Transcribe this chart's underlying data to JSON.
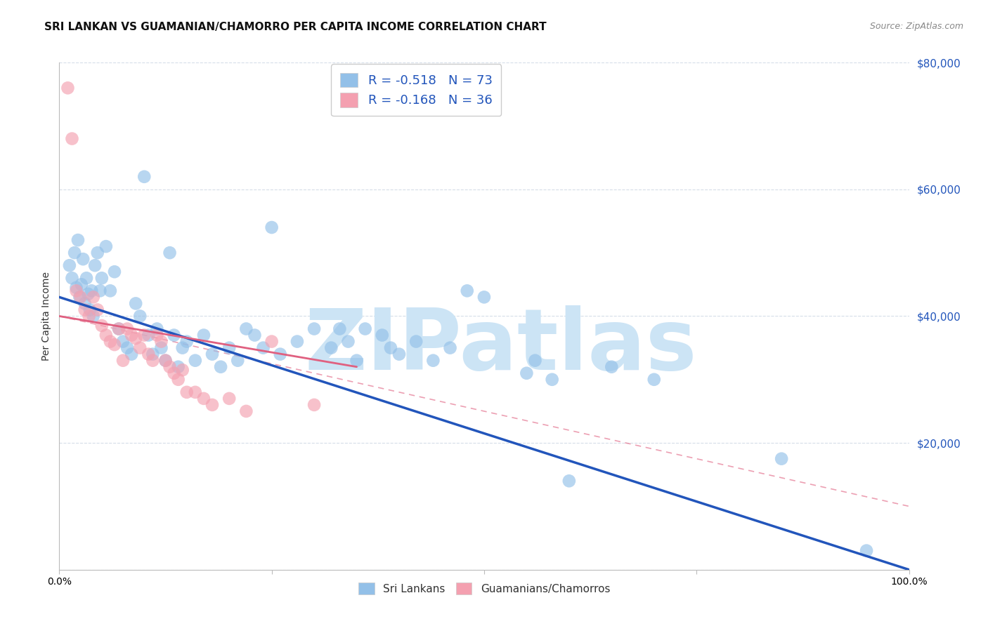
{
  "title": "SRI LANKAN VS GUAMANIAN/CHAMORRO PER CAPITA INCOME CORRELATION CHART",
  "source": "Source: ZipAtlas.com",
  "ylabel": "Per Capita Income",
  "y_tick_values": [
    0,
    20000,
    40000,
    60000,
    80000
  ],
  "ylim": [
    0,
    80000
  ],
  "xlim": [
    0.0,
    100.0
  ],
  "blue_color": "#93c0e8",
  "pink_color": "#f4a0b0",
  "blue_line_color": "#2255bb",
  "pink_line_color": "#e06080",
  "watermark": "ZIPatlas",
  "watermark_color": "#cce4f5",
  "blue_scatter": [
    [
      1.2,
      48000
    ],
    [
      1.5,
      46000
    ],
    [
      1.8,
      50000
    ],
    [
      2.0,
      44500
    ],
    [
      2.2,
      52000
    ],
    [
      2.4,
      43000
    ],
    [
      2.6,
      45000
    ],
    [
      2.8,
      49000
    ],
    [
      3.0,
      42000
    ],
    [
      3.2,
      46000
    ],
    [
      3.4,
      43500
    ],
    [
      3.6,
      41000
    ],
    [
      3.8,
      44000
    ],
    [
      4.0,
      40000
    ],
    [
      4.2,
      48000
    ],
    [
      4.5,
      50000
    ],
    [
      4.8,
      44000
    ],
    [
      5.0,
      46000
    ],
    [
      5.5,
      51000
    ],
    [
      6.0,
      44000
    ],
    [
      6.5,
      47000
    ],
    [
      7.0,
      38000
    ],
    [
      7.5,
      36000
    ],
    [
      8.0,
      35000
    ],
    [
      8.5,
      34000
    ],
    [
      9.0,
      42000
    ],
    [
      9.5,
      40000
    ],
    [
      10.0,
      62000
    ],
    [
      10.5,
      37000
    ],
    [
      11.0,
      34000
    ],
    [
      11.5,
      38000
    ],
    [
      12.0,
      35000
    ],
    [
      12.5,
      33000
    ],
    [
      13.0,
      50000
    ],
    [
      13.5,
      37000
    ],
    [
      14.0,
      32000
    ],
    [
      14.5,
      35000
    ],
    [
      15.0,
      36000
    ],
    [
      16.0,
      33000
    ],
    [
      17.0,
      37000
    ],
    [
      18.0,
      34000
    ],
    [
      19.0,
      32000
    ],
    [
      20.0,
      35000
    ],
    [
      21.0,
      33000
    ],
    [
      22.0,
      38000
    ],
    [
      23.0,
      37000
    ],
    [
      24.0,
      35000
    ],
    [
      25.0,
      54000
    ],
    [
      26.0,
      34000
    ],
    [
      28.0,
      36000
    ],
    [
      30.0,
      38000
    ],
    [
      32.0,
      35000
    ],
    [
      33.0,
      38000
    ],
    [
      34.0,
      36000
    ],
    [
      35.0,
      33000
    ],
    [
      36.0,
      38000
    ],
    [
      38.0,
      37000
    ],
    [
      39.0,
      35000
    ],
    [
      40.0,
      34000
    ],
    [
      42.0,
      36000
    ],
    [
      44.0,
      33000
    ],
    [
      46.0,
      35000
    ],
    [
      48.0,
      44000
    ],
    [
      50.0,
      43000
    ],
    [
      55.0,
      31000
    ],
    [
      56.0,
      33000
    ],
    [
      58.0,
      30000
    ],
    [
      60.0,
      14000
    ],
    [
      65.0,
      32000
    ],
    [
      70.0,
      30000
    ],
    [
      85.0,
      17500
    ],
    [
      95.0,
      3000
    ]
  ],
  "pink_scatter": [
    [
      1.0,
      76000
    ],
    [
      1.5,
      68000
    ],
    [
      2.0,
      44000
    ],
    [
      2.5,
      43000
    ],
    [
      3.0,
      41000
    ],
    [
      3.5,
      40000
    ],
    [
      4.0,
      43000
    ],
    [
      4.5,
      41000
    ],
    [
      5.0,
      38500
    ],
    [
      5.5,
      37000
    ],
    [
      6.0,
      36000
    ],
    [
      6.5,
      35500
    ],
    [
      7.0,
      38000
    ],
    [
      7.5,
      33000
    ],
    [
      8.0,
      38000
    ],
    [
      8.5,
      37000
    ],
    [
      9.0,
      36500
    ],
    [
      9.5,
      35000
    ],
    [
      10.0,
      37000
    ],
    [
      10.5,
      34000
    ],
    [
      11.0,
      33000
    ],
    [
      11.5,
      37000
    ],
    [
      12.0,
      36000
    ],
    [
      12.5,
      33000
    ],
    [
      13.0,
      32000
    ],
    [
      13.5,
      31000
    ],
    [
      14.0,
      30000
    ],
    [
      14.5,
      31500
    ],
    [
      15.0,
      28000
    ],
    [
      16.0,
      28000
    ],
    [
      17.0,
      27000
    ],
    [
      18.0,
      26000
    ],
    [
      20.0,
      27000
    ],
    [
      22.0,
      25000
    ],
    [
      25.0,
      36000
    ],
    [
      30.0,
      26000
    ]
  ],
  "blue_line": [
    [
      0,
      43000
    ],
    [
      100,
      0
    ]
  ],
  "pink_line": [
    [
      0,
      40000
    ],
    [
      35,
      32000
    ]
  ],
  "pink_dashed_line": [
    [
      0,
      40000
    ],
    [
      100,
      10000
    ]
  ],
  "grid_color": "#d5dde8",
  "background_color": "#ffffff",
  "title_fontsize": 11,
  "axis_label_fontsize": 10,
  "tick_fontsize": 10,
  "legend_fontsize": 13,
  "legend_text_color": "#2255bb",
  "legend_r_color": "#2255bb"
}
